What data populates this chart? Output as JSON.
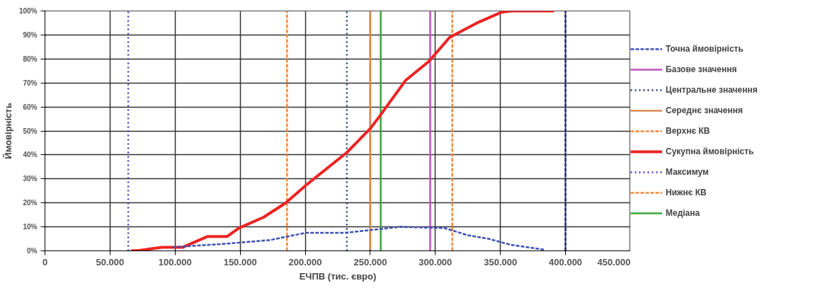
{
  "chart_data": {
    "type": "line",
    "xlabel": "ЕЧПВ (тис. євро)",
    "ylabel": "Ймовірність",
    "xlim": [
      0,
      450000
    ],
    "ylim": [
      0,
      100
    ],
    "xticks": [
      {
        "value": 0,
        "label": "0"
      },
      {
        "value": 50000,
        "label": "50.000"
      },
      {
        "value": 100000,
        "label": "100.000"
      },
      {
        "value": 150000,
        "label": "150.000"
      },
      {
        "value": 200000,
        "label": "200.000"
      },
      {
        "value": 250000,
        "label": "250.000"
      },
      {
        "value": 300000,
        "label": "300.000"
      },
      {
        "value": 350000,
        "label": "350.000"
      },
      {
        "value": 400000,
        "label": "400.000"
      },
      {
        "value": 450000,
        "label": "450.000"
      }
    ],
    "yticks": [
      {
        "value": 0,
        "label": "0%"
      },
      {
        "value": 10,
        "label": "10%"
      },
      {
        "value": 20,
        "label": "20%"
      },
      {
        "value": 30,
        "label": "30%"
      },
      {
        "value": 40,
        "label": "40%"
      },
      {
        "value": 50,
        "label": "50%"
      },
      {
        "value": 60,
        "label": "60%"
      },
      {
        "value": 70,
        "label": "70%"
      },
      {
        "value": 80,
        "label": "80%"
      },
      {
        "value": 90,
        "label": "90%"
      },
      {
        "value": 100,
        "label": "100%"
      }
    ],
    "grid": true,
    "legend": "right",
    "marker": "none",
    "series": [
      {
        "name": "Точна ймовірність",
        "color": "#3c50b4",
        "line_style": "dashed",
        "x": [
          98000,
          140000,
          173000,
          200000,
          230000,
          273000,
          307000,
          325000,
          341000,
          358000,
          384000
        ],
        "values": [
          1.5,
          3,
          4.5,
          7.5,
          7.5,
          10,
          9.5,
          6.5,
          5,
          2.5,
          0.5
        ]
      },
      {
        "name": "Базове значення",
        "color": "#c050c0",
        "line_style": "solid",
        "x": [
          296000,
          296000
        ],
        "values": [
          0,
          100
        ]
      },
      {
        "name": "Центральне значення",
        "color": "#1f3a6e",
        "line_style": "dotted",
        "x": [
          232000,
          232000
        ],
        "values": [
          0,
          100
        ]
      },
      {
        "name": "Середнє значення",
        "color": "#d98a4e",
        "line_style": "solid",
        "x": [
          250000,
          250000
        ],
        "values": [
          0,
          100
        ]
      },
      {
        "name": "Верхнє КВ",
        "color": "#f08a3c",
        "line_style": "dashed",
        "x": [
          313000,
          313000
        ],
        "values": [
          0,
          100
        ]
      },
      {
        "name": "Сукупна ймовірність",
        "color": "#ee2222",
        "line_style": "solid",
        "x": [
          66000,
          73000,
          90000,
          106000,
          125000,
          140000,
          149000,
          168000,
          185000,
          202000,
          232000,
          250000,
          257000,
          277000,
          295000,
          311000,
          332000,
          351000,
          358000,
          391000
        ],
        "values": [
          0,
          0.2,
          1.5,
          1.5,
          6,
          6,
          9.5,
          14,
          20,
          28,
          41,
          51,
          56,
          71,
          79,
          89,
          95,
          99.5,
          100,
          100
        ]
      },
      {
        "name": "Максимум",
        "color": "#4a3fb0",
        "line_style": "dotted",
        "x": [
          64000,
          64000
        ],
        "values": [
          0,
          100
        ]
      },
      {
        "name": "Нижнє КВ",
        "color": "#f08a3c",
        "line_style": "dashed",
        "x": [
          186000,
          186000
        ],
        "values": [
          0,
          100
        ]
      },
      {
        "name": "Медіана",
        "color": "#3aa63a",
        "line_style": "solid",
        "x": [
          258000,
          258000
        ],
        "values": [
          0,
          100
        ]
      },
      {
        "color": "#1f2a80",
        "line_style": "dashed",
        "x": [
          400000,
          400000
        ],
        "values": [
          0,
          100
        ]
      }
    ]
  }
}
